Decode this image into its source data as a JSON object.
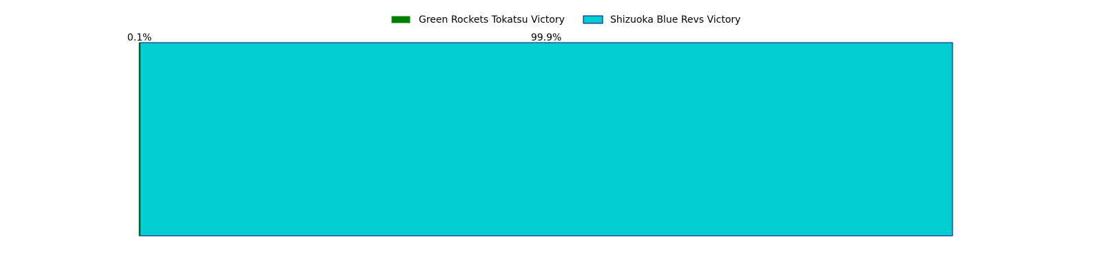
{
  "chart_data": {
    "type": "bar",
    "orientation": "horizontal-stacked-100",
    "series": [
      {
        "name": "Green Rockets Tokatsu Victory",
        "value": 0.1,
        "label": "0.1%",
        "color": "#008000",
        "edge": "#008000"
      },
      {
        "name": "Shizuoka Blue Revs Victory",
        "value": 99.9,
        "label": "99.9%",
        "color": "#00CED1",
        "edge": "#00008B"
      }
    ],
    "xlim": [
      0,
      100
    ],
    "grid": false,
    "axes_visible": false,
    "legend_position": "top-center"
  }
}
